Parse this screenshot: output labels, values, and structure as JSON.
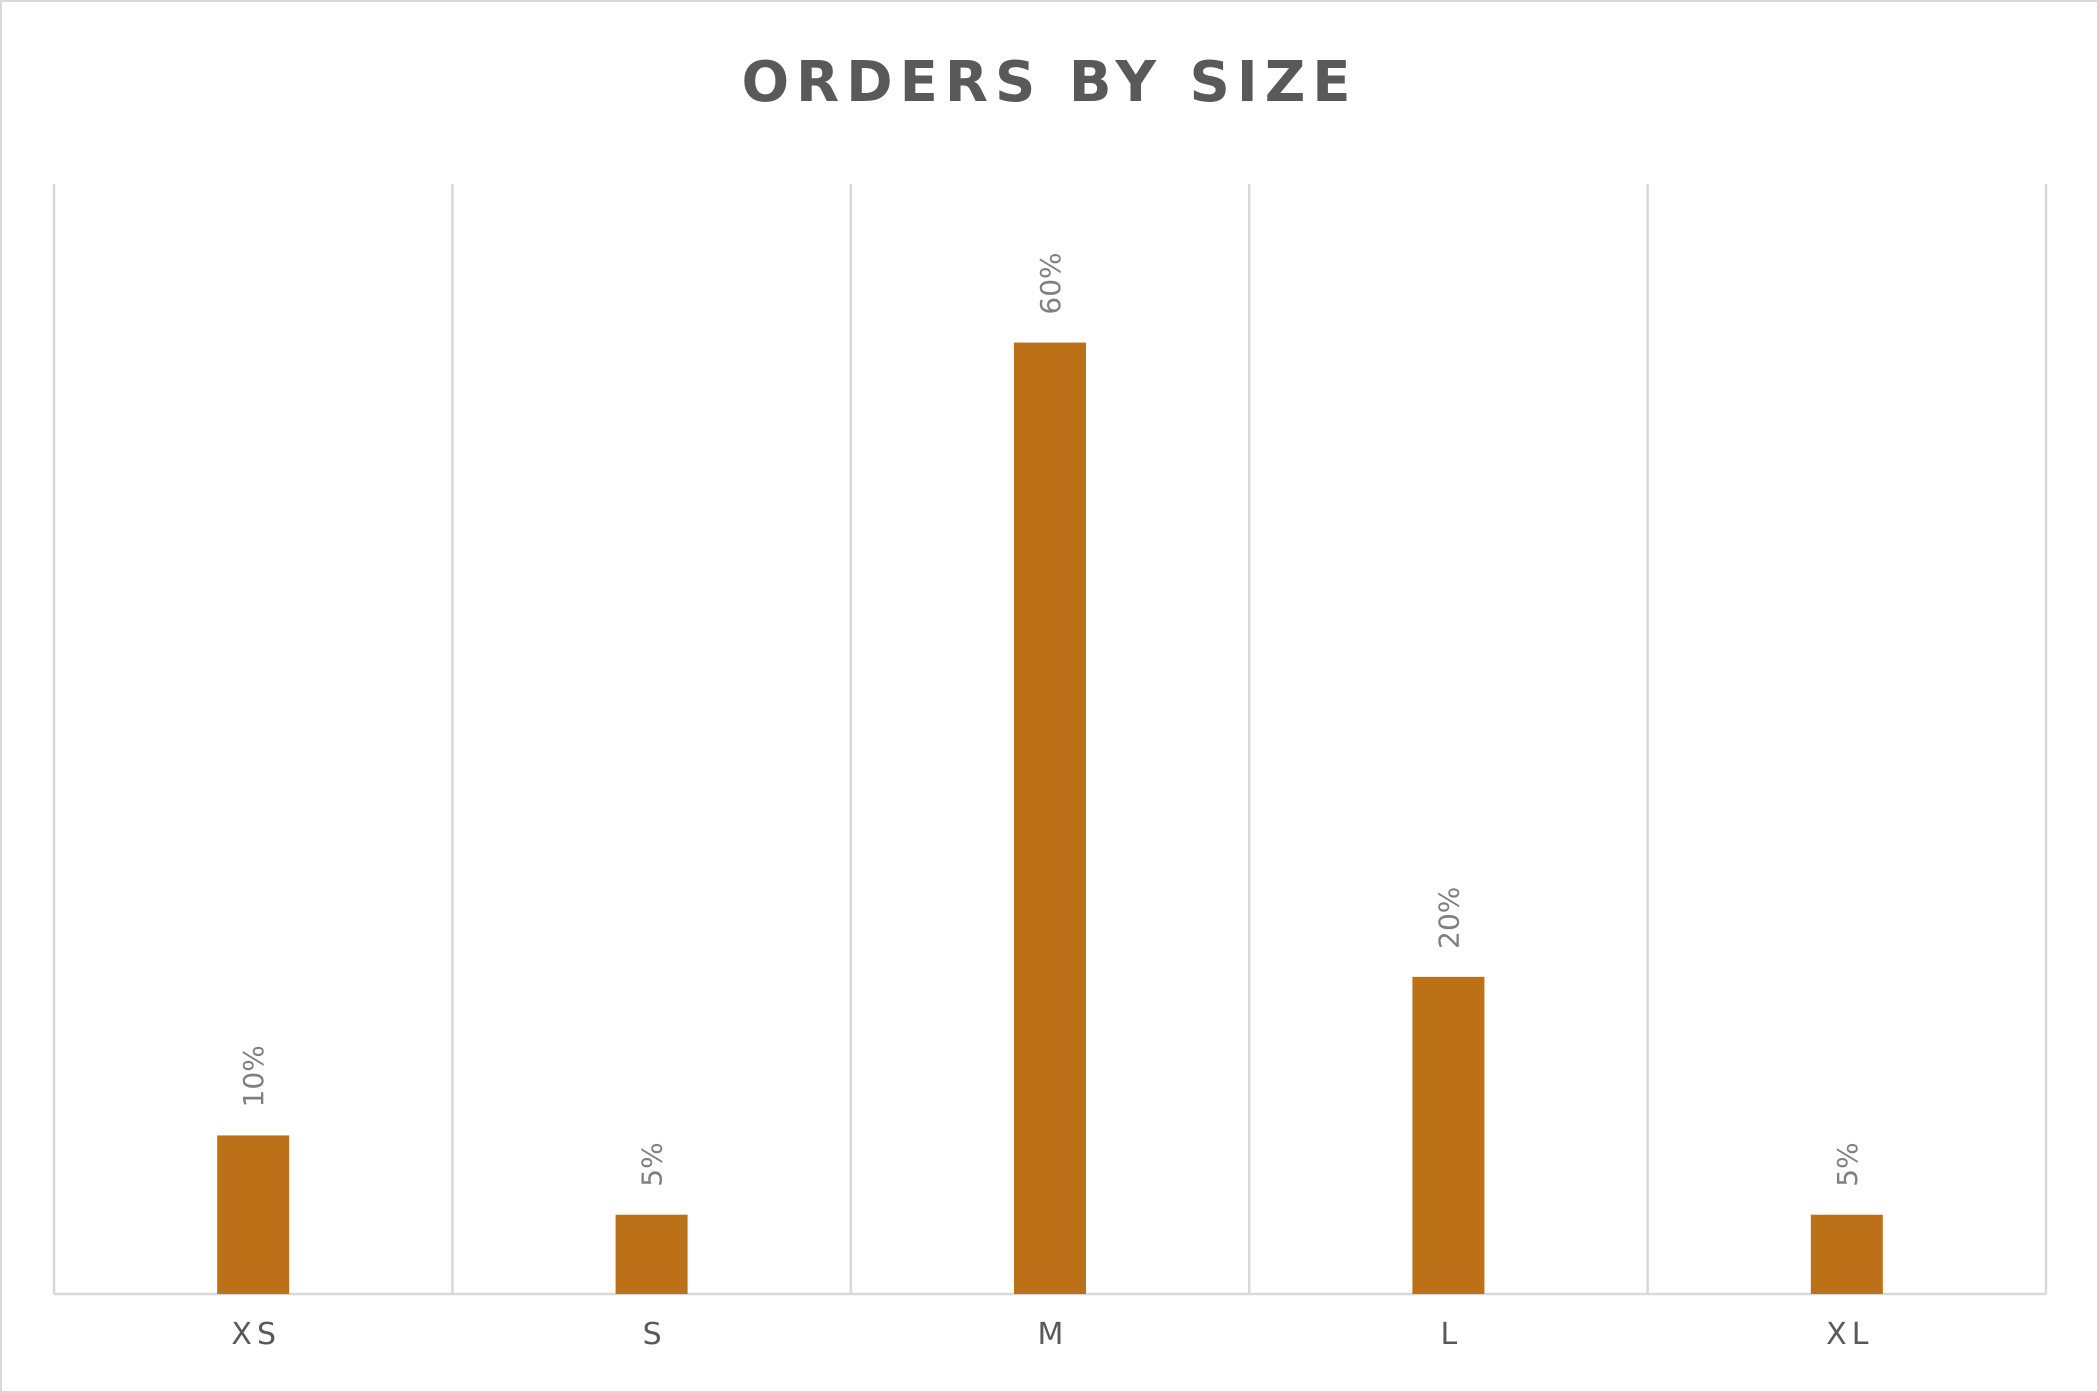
{
  "chart_data": {
    "type": "bar",
    "title": "ORDERS BY SIZE",
    "categories": [
      "XS",
      "S",
      "M",
      "L",
      "XL"
    ],
    "values": [
      10,
      5,
      60,
      20,
      5
    ],
    "data_labels": [
      "10%",
      "5%",
      "60%",
      "20%",
      "5%"
    ],
    "unit": "%",
    "ylim": [
      0,
      70
    ],
    "grid": "vertical",
    "legend": "none",
    "bar_color": "#bc7018",
    "xlabel": "",
    "ylabel": ""
  }
}
